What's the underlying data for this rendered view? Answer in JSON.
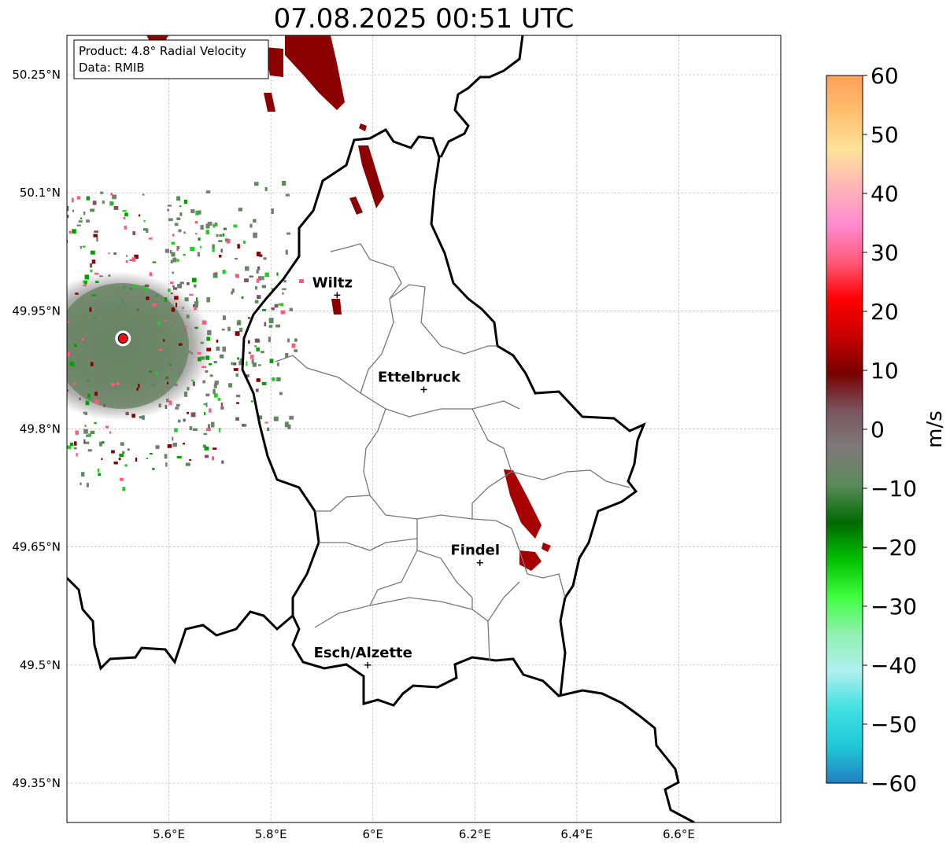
{
  "title": "07.08.2025 00:51 UTC",
  "info_box": {
    "product": "Product: 4.8° Radial Velocity",
    "data": "Data: RMIB"
  },
  "map": {
    "lon_range": [
      5.4,
      6.8
    ],
    "lat_range": [
      49.3,
      50.3
    ],
    "lon_ticks": [
      "5.6°E",
      "5.8°E",
      "6°E",
      "6.2°E",
      "6.4°E",
      "6.6°E"
    ],
    "lat_ticks": [
      "50.25°N",
      "50.1°N",
      "49.95°N",
      "49.8°N",
      "49.65°N",
      "49.5°N",
      "49.35°N"
    ],
    "cities": [
      {
        "name": "Wiltz",
        "lon": 5.93,
        "lat": 49.97
      },
      {
        "name": "Ettelbruck",
        "lon": 6.1,
        "lat": 49.85
      },
      {
        "name": "Findel",
        "lon": 6.21,
        "lat": 49.63
      },
      {
        "name": "Esch/Alzette",
        "lon": 5.99,
        "lat": 49.5
      }
    ],
    "radar_site": {
      "lon": 5.51,
      "lat": 49.915
    }
  },
  "colorbar": {
    "label": "m/s",
    "ticks": [
      "60",
      "50",
      "40",
      "30",
      "20",
      "10",
      "0",
      "−10",
      "−20",
      "−30",
      "−40",
      "−50",
      "−60"
    ],
    "stops": [
      "#ff9f5a",
      "#ffc070",
      "#ffe29a",
      "#ffb4b8",
      "#ff8ad0",
      "#ff5a7a",
      "#ff0000",
      "#c80000",
      "#780000",
      "#7a5560",
      "#7f7a7a",
      "#5a8a5a",
      "#006a00",
      "#00c000",
      "#40ff40",
      "#90f0b0",
      "#b0f0f0",
      "#40e0e0",
      "#20c8d8",
      "#2080c0"
    ]
  }
}
